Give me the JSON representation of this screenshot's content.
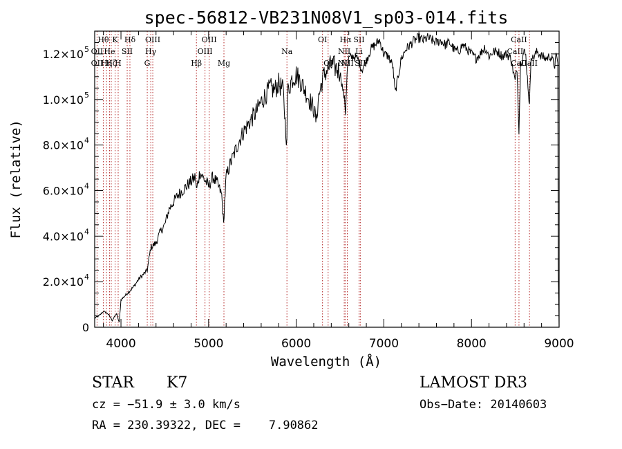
{
  "chart_data": {
    "type": "line",
    "title": "spec-56812-VB231N08V1_sp03-014.fits",
    "xlabel": "Wavelength (Å)",
    "ylabel": "Flux (relative)",
    "xlim": [
      3700,
      9000
    ],
    "ylim": [
      0,
      130000
    ],
    "x_ticks": [
      {
        "value": 4000,
        "label": "4000"
      },
      {
        "value": 5000,
        "label": "5000"
      },
      {
        "value": 6000,
        "label": "6000"
      },
      {
        "value": 7000,
        "label": "7000"
      },
      {
        "value": 8000,
        "label": "8000"
      },
      {
        "value": 9000,
        "label": "9000"
      }
    ],
    "y_ticks": [
      {
        "value": 0,
        "mantissa": "0",
        "exp": ""
      },
      {
        "value": 20000,
        "mantissa": "2.0×10",
        "exp": "4"
      },
      {
        "value": 40000,
        "mantissa": "4.0×10",
        "exp": "4"
      },
      {
        "value": 60000,
        "mantissa": "6.0×10",
        "exp": "4"
      },
      {
        "value": 80000,
        "mantissa": "8.0×10",
        "exp": "4"
      },
      {
        "value": 100000,
        "mantissa": "1.0×10",
        "exp": "5"
      },
      {
        "value": 120000,
        "mantissa": "1.2×10",
        "exp": "5"
      }
    ],
    "spectrum": {
      "x": [
        3700,
        3750,
        3800,
        3850,
        3900,
        3950,
        3980,
        4000,
        4050,
        4100,
        4150,
        4200,
        4250,
        4300,
        4320,
        4340,
        4400,
        4450,
        4500,
        4550,
        4600,
        4650,
        4700,
        4750,
        4800,
        4850,
        4861,
        4900,
        4950,
        5000,
        5050,
        5100,
        5150,
        5172,
        5183,
        5200,
        5250,
        5300,
        5350,
        5400,
        5450,
        5500,
        5550,
        5600,
        5650,
        5700,
        5750,
        5800,
        5850,
        5893,
        5900,
        5950,
        6000,
        6050,
        6100,
        6150,
        6200,
        6230,
        6250,
        6300,
        6350,
        6400,
        6450,
        6500,
        6550,
        6563,
        6580,
        6600,
        6650,
        6700,
        6750,
        6800,
        6850,
        6900,
        6950,
        7000,
        7050,
        7100,
        7130,
        7200,
        7250,
        7300,
        7350,
        7400,
        7450,
        7500,
        7550,
        7600,
        7650,
        7700,
        7750,
        7800,
        7850,
        7900,
        7950,
        8000,
        8050,
        8100,
        8150,
        8200,
        8250,
        8300,
        8350,
        8400,
        8450,
        8498,
        8520,
        8542,
        8560,
        8600,
        8620,
        8662,
        8680,
        8700,
        8750,
        8800,
        8850,
        8900,
        8950,
        8970,
        8985,
        8990,
        9000
      ],
      "y": [
        4000,
        5000,
        7000,
        6000,
        3000,
        6000,
        2000,
        12000,
        14000,
        16000,
        18000,
        21000,
        23000,
        25000,
        30000,
        35000,
        37000,
        42000,
        45000,
        52000,
        55000,
        58000,
        60000,
        62000,
        64000,
        66000,
        60000,
        68000,
        65000,
        62000,
        66000,
        63000,
        58000,
        45000,
        55000,
        66000,
        72000,
        77000,
        82000,
        86000,
        89000,
        92000,
        95000,
        99000,
        102000,
        105000,
        104000,
        107000,
        104000,
        80000,
        103000,
        109000,
        111000,
        108000,
        104000,
        100000,
        96000,
        90000,
        100000,
        109000,
        113000,
        115000,
        114000,
        112000,
        100000,
        94000,
        112000,
        118000,
        119000,
        118000,
        113000,
        117000,
        122000,
        124000,
        126000,
        120000,
        119000,
        115000,
        103000,
        118000,
        122000,
        124000,
        126000,
        127000,
        126000,
        127000,
        126000,
        125000,
        126000,
        124000,
        125000,
        122000,
        121000,
        124000,
        122000,
        120000,
        118000,
        120000,
        123000,
        119000,
        121000,
        121000,
        119000,
        120000,
        118000,
        108000,
        114000,
        86000,
        116000,
        121000,
        119000,
        97000,
        120000,
        118000,
        121000,
        119000,
        118000,
        119000,
        115000,
        120000,
        116000,
        25000,
        0
      ]
    },
    "lines_dashed_red": [
      {
        "x": 3727,
        "labels": [
          {
            "text": "OII",
            "row": 2
          },
          {
            "text": "OII",
            "row": 3
          }
        ]
      },
      {
        "x": 3798,
        "labels": [
          {
            "text": "Hθ",
            "row": 1
          }
        ]
      },
      {
        "x": 3835,
        "labels": [
          {
            "text": "Hη",
            "row": 3
          }
        ]
      },
      {
        "x": 3869,
        "labels": [
          {
            "text": "He",
            "row": 2
          }
        ]
      },
      {
        "x": 3889,
        "labels": [
          {
            "text": "Hζ",
            "row": 3
          }
        ]
      },
      {
        "x": 3933,
        "labels": [
          {
            "text": "K",
            "row": 1
          }
        ]
      },
      {
        "x": 3968,
        "labels": [
          {
            "text": "H",
            "row": 3
          }
        ]
      },
      {
        "x": 4071,
        "labels": [
          {
            "text": "SII",
            "row": 2
          }
        ]
      },
      {
        "x": 4102,
        "labels": [
          {
            "text": "Hδ",
            "row": 1
          }
        ]
      },
      {
        "x": 4300,
        "labels": [
          {
            "text": "G",
            "row": 3
          }
        ]
      },
      {
        "x": 4340,
        "labels": [
          {
            "text": "Hγ",
            "row": 2
          }
        ]
      },
      {
        "x": 4363,
        "labels": [
          {
            "text": "OIII",
            "row": 1
          }
        ]
      },
      {
        "x": 4861,
        "labels": [
          {
            "text": "Hβ",
            "row": 3
          }
        ]
      },
      {
        "x": 4959,
        "labels": [
          {
            "text": "OIII",
            "row": 2
          }
        ]
      },
      {
        "x": 5007,
        "labels": [
          {
            "text": "OIII",
            "row": 1
          }
        ]
      },
      {
        "x": 5175,
        "labels": [
          {
            "text": "Mg",
            "row": 3
          }
        ]
      },
      {
        "x": 5894,
        "labels": [
          {
            "text": "Na",
            "row": 2
          }
        ]
      },
      {
        "x": 6300,
        "labels": [
          {
            "text": "OI",
            "row": 1
          }
        ]
      },
      {
        "x": 6364,
        "labels": [
          {
            "text": "OI",
            "row": 3
          }
        ]
      },
      {
        "x": 6548,
        "labels": [
          {
            "text": "NII",
            "row": 2
          },
          {
            "text": "NII",
            "row": 3
          }
        ]
      },
      {
        "x": 6563,
        "labels": [
          {
            "text": "Hα",
            "row": 1
          }
        ]
      },
      {
        "x": 6583,
        "labels": [
          {
            "text": "NII",
            "row": 3
          }
        ]
      },
      {
        "x": 6717,
        "labels": [
          {
            "text": "SII",
            "row": 1
          },
          {
            "text": "Li",
            "row": 2
          }
        ]
      },
      {
        "x": 6731,
        "labels": [
          {
            "text": "SII",
            "row": 3
          }
        ]
      },
      {
        "x": 8498,
        "labels": [
          {
            "text": "CaII",
            "row": 2
          }
        ]
      },
      {
        "x": 8542,
        "labels": [
          {
            "text": "CaII",
            "row": 1
          },
          {
            "text": "CaII",
            "row": 3
          }
        ]
      },
      {
        "x": 8662,
        "labels": [
          {
            "text": "CaII",
            "row": 3
          }
        ]
      }
    ],
    "line_color": "#000000",
    "marker_color": "#b22222"
  },
  "info": {
    "class_label": "STAR",
    "subclass": "K7",
    "survey": "LAMOST DR3",
    "cz": "cz = −51.9 ± 3.0 km/s",
    "obs_date": "Obs−Date: 20140603",
    "coords": "RA = 230.39322, DEC =    7.90862"
  }
}
